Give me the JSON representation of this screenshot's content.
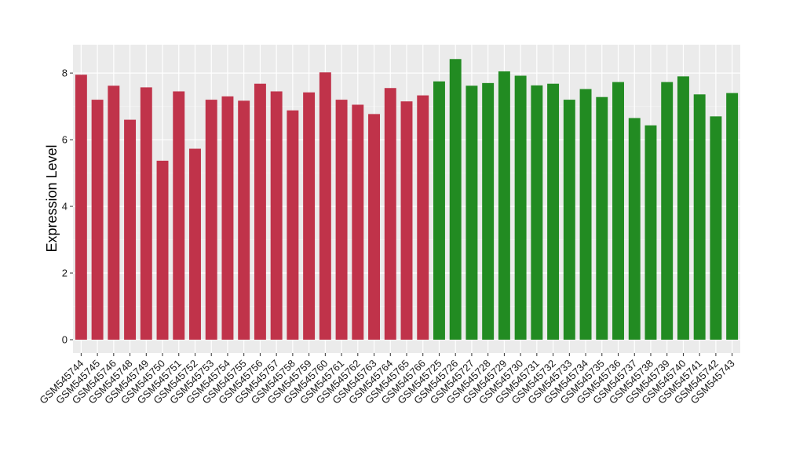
{
  "chart_data": {
    "type": "bar",
    "ylabel": "Expression Level",
    "xlabel": "",
    "ylim": [
      -0.4,
      8.85
    ],
    "yticks": [
      0,
      2,
      4,
      6,
      8
    ],
    "grid": true,
    "legend": "none",
    "series": [
      {
        "color": "#c0334a",
        "categories": [
          "GSM545744",
          "GSM545745",
          "GSM545746",
          "GSM545748",
          "GSM545749",
          "GSM545750",
          "GSM545751",
          "GSM545752",
          "GSM545753",
          "GSM545754",
          "GSM545755",
          "GSM545756",
          "GSM545757",
          "GSM545758",
          "GSM545759",
          "GSM545760",
          "GSM545761",
          "GSM545762",
          "GSM545763",
          "GSM545764",
          "GSM545765",
          "GSM545766"
        ],
        "values": [
          7.95,
          7.2,
          7.62,
          6.6,
          7.57,
          5.37,
          7.45,
          5.73,
          7.2,
          7.3,
          7.17,
          7.68,
          7.45,
          6.88,
          7.42,
          8.02,
          7.2,
          7.05,
          6.77,
          7.55,
          7.15,
          7.33
        ]
      },
      {
        "color": "#228b22",
        "categories": [
          "GSM545725",
          "GSM545726",
          "GSM545727",
          "GSM545728",
          "GSM545729",
          "GSM545730",
          "GSM545731",
          "GSM545732",
          "GSM545733",
          "GSM545734",
          "GSM545735",
          "GSM545736",
          "GSM545737",
          "GSM545738",
          "GSM545739",
          "GSM545740",
          "GSM545741",
          "GSM545742",
          "GSM545743"
        ],
        "values": [
          7.75,
          8.42,
          7.62,
          7.7,
          8.05,
          7.92,
          7.63,
          7.68,
          7.2,
          7.52,
          7.28,
          7.73,
          6.65,
          6.43,
          7.73,
          7.9,
          7.36,
          6.7,
          7.4
        ]
      }
    ]
  }
}
